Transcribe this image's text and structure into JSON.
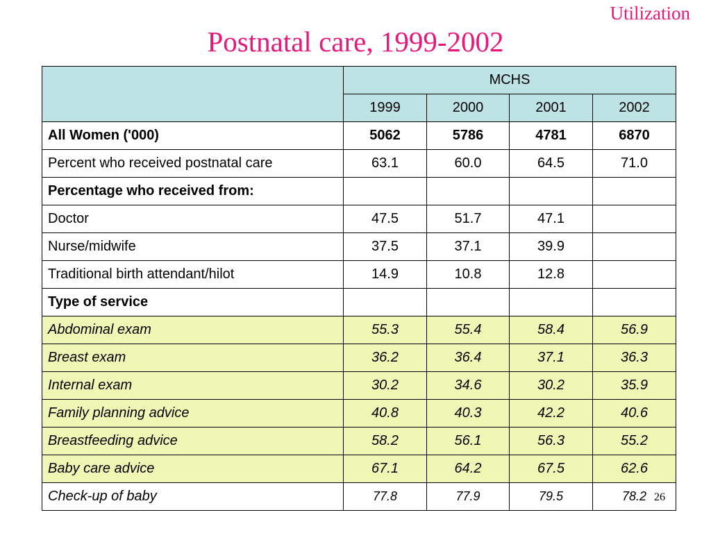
{
  "corner_label": "Utilization",
  "title": "Postnatal care, 1999-2002",
  "group_header": "MCHS",
  "years": [
    "1999",
    "2000",
    "2001",
    "2002"
  ],
  "rows": [
    {
      "label": "All Women ('000)",
      "values": [
        "5062",
        "5786",
        "4781",
        "6870"
      ],
      "style": "bold"
    },
    {
      "label": "Percent who received postnatal care",
      "values": [
        "63.1",
        "60.0",
        "64.5",
        "71.0"
      ],
      "style": "plain"
    },
    {
      "label": "Percentage who received from:",
      "values": [
        "",
        "",
        "",
        ""
      ],
      "style": "bold"
    },
    {
      "label": "Doctor",
      "values": [
        "47.5",
        "51.7",
        "47.1",
        ""
      ],
      "style": "plain"
    },
    {
      "label": "Nurse/midwife",
      "values": [
        "37.5",
        "37.1",
        "39.9",
        ""
      ],
      "style": "plain"
    },
    {
      "label": "Traditional birth attendant/hilot",
      "values": [
        "14.9",
        "10.8",
        "12.8",
        ""
      ],
      "style": "plain"
    },
    {
      "label": "Type of service",
      "values": [
        "",
        "",
        "",
        ""
      ],
      "style": "bold"
    },
    {
      "label": "Abdominal exam",
      "values": [
        "55.3",
        "55.4",
        "58.4",
        "56.9"
      ],
      "style": "hl"
    },
    {
      "label": "Breast exam",
      "values": [
        "36.2",
        "36.4",
        "37.1",
        "36.3"
      ],
      "style": "hl"
    },
    {
      "label": "Internal exam",
      "values": [
        "30.2",
        "34.6",
        "30.2",
        "35.9"
      ],
      "style": "hl"
    },
    {
      "label": "Family planning advice",
      "values": [
        "40.8",
        "40.3",
        "42.2",
        "40.6"
      ],
      "style": "hl"
    },
    {
      "label": "Breastfeeding advice",
      "values": [
        "58.2",
        "56.1",
        "56.3",
        "55.2"
      ],
      "style": "hl"
    },
    {
      "label": "Baby care advice",
      "values": [
        "67.1",
        "64.2",
        "67.5",
        "62.6"
      ],
      "style": "hl"
    },
    {
      "label": "Check-up of baby",
      "values": [
        "77.8",
        "77.9",
        "79.5",
        "78.2"
      ],
      "style": "last"
    }
  ],
  "page_number": "26",
  "colors": {
    "title": "#e8177a",
    "header_bg": "#bde3e5",
    "highlight_bg": "#f0f7b5"
  }
}
